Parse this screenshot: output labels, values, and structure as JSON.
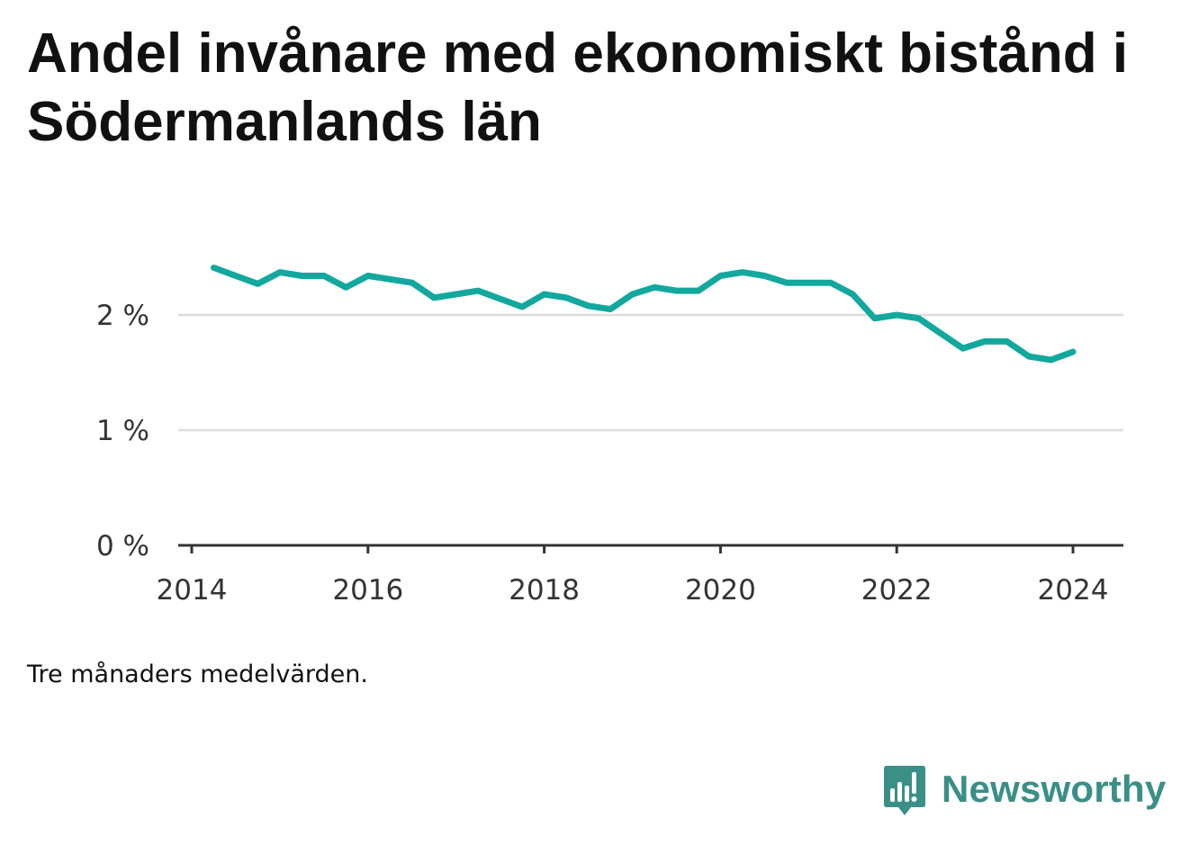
{
  "title": "Andel invånare med ekonomiskt bistånd i Södermanlands län",
  "footnote": "Tre månaders medelvärden.",
  "brand": {
    "name": "Newsworthy",
    "icon": "newsworthy-logo-icon",
    "color": "#3a8f87"
  },
  "colors": {
    "line": "#13a89e",
    "grid": "#dddddd",
    "axis": "#333333"
  },
  "chart_data": {
    "type": "line",
    "title": "Andel invånare med ekonomiskt bistånd i Södermanlands län",
    "xlabel": "",
    "ylabel": "",
    "x_ticks": [
      "2014",
      "2016",
      "2018",
      "2020",
      "2022",
      "2024"
    ],
    "y_ticks": [
      "0 %",
      "1 %",
      "2 %"
    ],
    "xlim": [
      "2014-01",
      "2024-04"
    ],
    "ylim": [
      0,
      2.6
    ],
    "grid": true,
    "legend": "none",
    "series": [
      {
        "x": [
          "2014-04",
          "2014-07",
          "2014-10",
          "2015-01",
          "2015-04",
          "2015-07",
          "2015-10",
          "2016-01",
          "2016-04",
          "2016-07",
          "2016-10",
          "2017-01",
          "2017-04",
          "2017-07",
          "2017-10",
          "2018-01",
          "2018-04",
          "2018-07",
          "2018-10",
          "2019-01",
          "2019-04",
          "2019-07",
          "2019-10",
          "2020-01",
          "2020-04",
          "2020-07",
          "2020-10",
          "2021-01",
          "2021-04",
          "2021-07",
          "2021-10",
          "2022-01",
          "2022-04",
          "2022-07",
          "2022-10",
          "2023-01",
          "2023-04",
          "2023-07",
          "2023-10",
          "2024-01"
        ],
        "values": [
          2.41,
          2.34,
          2.27,
          2.37,
          2.34,
          2.34,
          2.24,
          2.34,
          2.31,
          2.28,
          2.15,
          2.18,
          2.21,
          2.14,
          2.07,
          2.18,
          2.15,
          2.08,
          2.05,
          2.18,
          2.24,
          2.21,
          2.21,
          2.34,
          2.37,
          2.34,
          2.28,
          2.28,
          2.28,
          2.18,
          1.97,
          2.0,
          1.97,
          1.84,
          1.71,
          1.77,
          1.77,
          1.64,
          1.61,
          1.68
        ]
      }
    ]
  }
}
